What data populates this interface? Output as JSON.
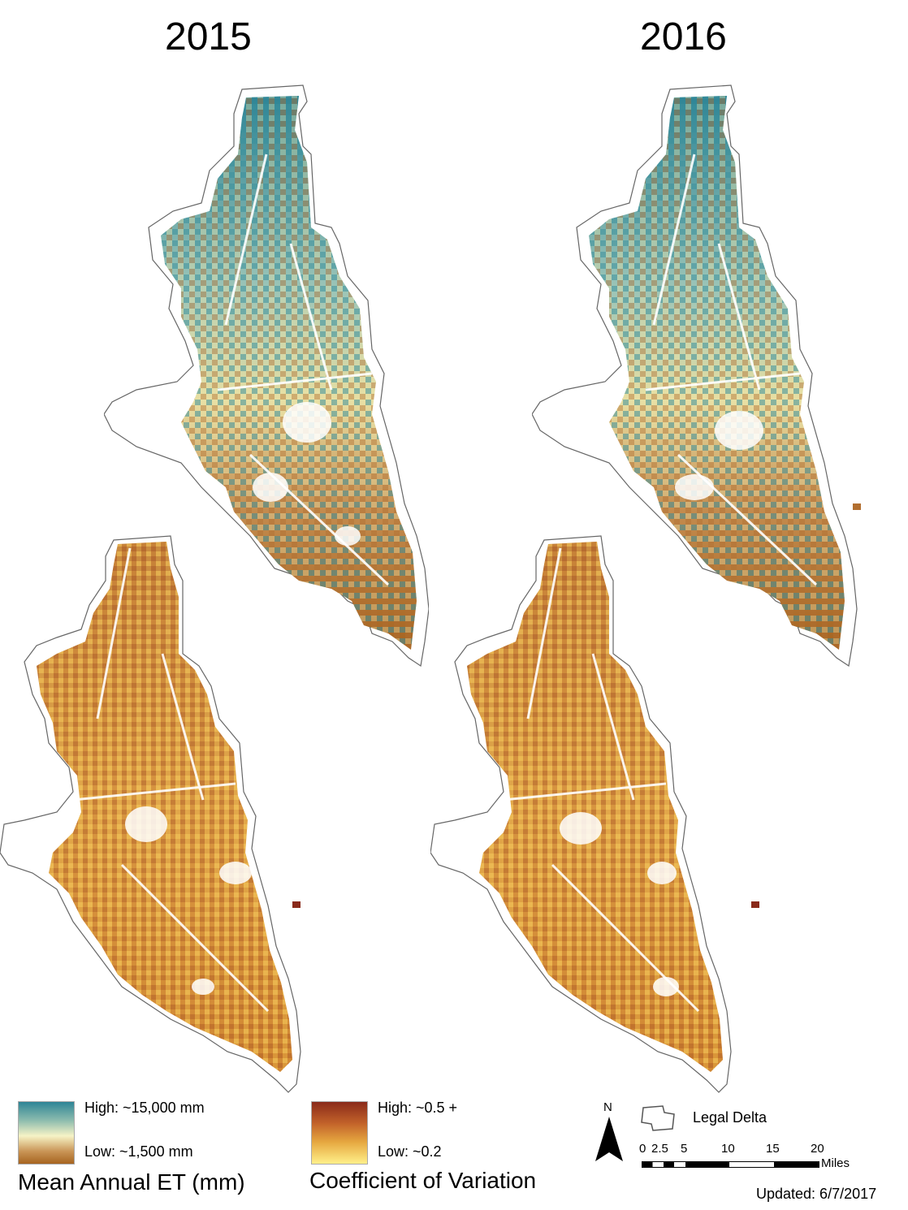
{
  "panels": [
    {
      "year": "2015"
    },
    {
      "year": "2016"
    }
  ],
  "legend": {
    "et": {
      "high_label": "High: ~15,000 mm",
      "low_label": "Low: ~1,500 mm",
      "title": "Mean Annual ET (mm)",
      "colors": [
        "#2e8596",
        "#f6f3c6",
        "#a66420"
      ]
    },
    "cv": {
      "high_label": "High: ~0.5 +",
      "low_label": "Low: ~0.2",
      "title": "Coefficient of Variation",
      "colors": [
        "#8a2a1a",
        "#e0a040",
        "#fff08a"
      ]
    },
    "boundary_label": "Legal Delta",
    "north_label": "N",
    "scale_ticks": [
      "0",
      "2.5",
      "5",
      "10",
      "15",
      "20"
    ],
    "scale_unit": "Miles"
  },
  "updated": "Updated: 6/7/2017"
}
